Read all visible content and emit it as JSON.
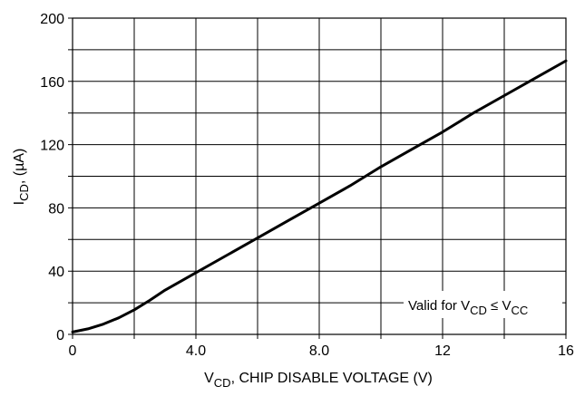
{
  "chart_data": {
    "type": "line",
    "title": "",
    "xlabel": {
      "main": "V",
      "sub": "CD",
      "rest": ", CHIP DISABLE VOLTAGE (V)"
    },
    "ylabel": {
      "main": "I",
      "sub": "CD",
      "rest": ", (µA)"
    },
    "xlim": [
      0,
      16
    ],
    "ylim": [
      0,
      200
    ],
    "x_ticks": [
      0,
      2,
      4,
      6,
      8,
      10,
      12,
      14,
      16
    ],
    "x_tick_labels": [
      "0",
      "",
      "4.0",
      "",
      "8.0",
      "",
      "12",
      "",
      "16"
    ],
    "y_ticks": [
      0,
      20,
      40,
      60,
      80,
      100,
      120,
      140,
      160,
      180,
      200
    ],
    "y_tick_labels": [
      "0",
      "",
      "40",
      "",
      "80",
      "",
      "120",
      "",
      "160",
      "",
      "200"
    ],
    "grid": true,
    "annotation": {
      "prefix": "Valid for V",
      "sub1": "CD",
      "mid": " ≤ V",
      "sub2": "CC"
    },
    "series": [
      {
        "x": [
          0,
          0.5,
          1.0,
          1.5,
          2.0,
          2.5,
          3.0,
          4.0,
          5.0,
          6.0,
          7.0,
          8.0,
          9.0,
          10.0,
          11.0,
          12.0,
          13.0,
          14.0,
          15.0,
          16.0
        ],
        "y": [
          1.5,
          3.5,
          6.5,
          10.5,
          15.5,
          21.5,
          28.0,
          39.0,
          50.0,
          61.0,
          72.0,
          83.0,
          94.0,
          106.0,
          117.0,
          128.0,
          140.0,
          151.0,
          162.0,
          173.0
        ]
      }
    ]
  }
}
